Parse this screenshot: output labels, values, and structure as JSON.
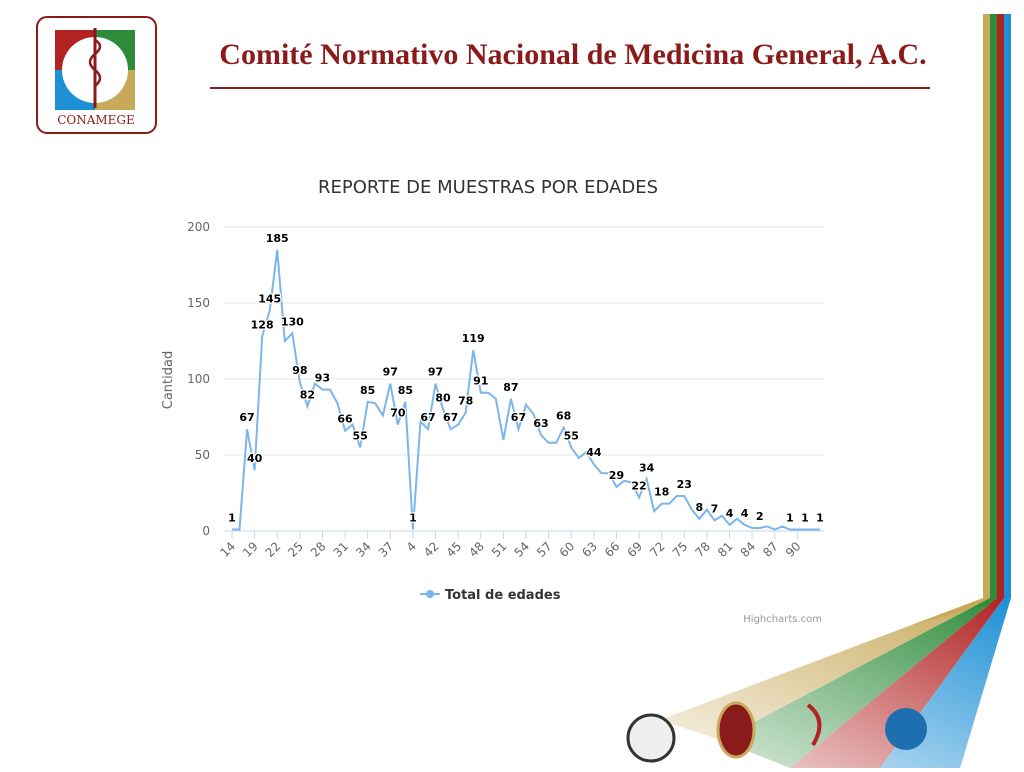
{
  "header": {
    "title": "Comité Normativo Nacional de Medicina General, A.C.",
    "logo_text": "CONAMEGE"
  },
  "chart_data": {
    "type": "line",
    "title": "REPORTE DE MUESTRAS POR EDADES",
    "y_label": "Cantidad",
    "credits": "Highcharts.com",
    "categories": [
      "14",
      null,
      null,
      "19",
      null,
      null,
      "22",
      null,
      null,
      "25",
      null,
      null,
      "28",
      null,
      null,
      "31",
      null,
      null,
      "34",
      null,
      null,
      "37",
      null,
      null,
      "4",
      null,
      null,
      "42",
      null,
      null,
      "45",
      null,
      null,
      "48",
      null,
      null,
      "51",
      null,
      null,
      "54",
      null,
      null,
      "57",
      null,
      null,
      "60",
      null,
      null,
      "63",
      null,
      null,
      "66",
      null,
      null,
      "69",
      null,
      null,
      "72",
      null,
      null,
      "75",
      null,
      null,
      "78",
      null,
      null,
      "81",
      null,
      null,
      "84",
      null,
      null,
      "87",
      null,
      null,
      "90",
      null,
      null,
      null
    ],
    "series": [
      {
        "name": "Total de edades",
        "color": "#7cb5ec",
        "values": [
          1,
          1,
          67,
          40,
          128,
          145,
          185,
          125,
          130,
          98,
          82,
          97,
          93,
          93,
          84,
          66,
          70,
          55,
          85,
          84,
          76,
          97,
          70,
          85,
          1,
          72,
          67,
          97,
          80,
          67,
          70,
          78,
          119,
          91,
          91,
          87,
          60,
          87,
          67,
          83,
          77,
          63,
          58,
          58,
          68,
          55,
          48,
          52,
          44,
          38,
          38,
          29,
          33,
          32,
          22,
          34,
          13,
          18,
          18,
          23,
          23,
          14,
          8,
          14,
          7,
          10,
          4,
          8,
          4,
          2,
          2,
          3,
          1,
          3,
          1,
          1,
          1,
          1,
          1
        ],
        "value_labels": [
          "1",
          null,
          "67",
          "40",
          "128",
          "145",
          "185",
          null,
          "130",
          "98",
          "82",
          null,
          "93",
          null,
          null,
          "66",
          null,
          "55",
          "85",
          null,
          null,
          "97",
          "70",
          "85",
          "1",
          null,
          "67",
          "97",
          "80",
          "67",
          null,
          "78",
          "119",
          "91",
          null,
          null,
          null,
          "87",
          "67",
          null,
          null,
          "63",
          null,
          null,
          "68",
          "55",
          null,
          null,
          "44",
          null,
          null,
          "29",
          null,
          null,
          "22",
          "34",
          null,
          "18",
          null,
          null,
          "23",
          null,
          "8",
          null,
          "7",
          null,
          "4",
          null,
          "4",
          null,
          "2",
          null,
          null,
          null,
          "1",
          null,
          "1",
          null,
          "1"
        ]
      }
    ],
    "ylim": [
      0,
      200
    ],
    "yticks": [
      0,
      50,
      100,
      150,
      200
    ],
    "grid": true
  }
}
